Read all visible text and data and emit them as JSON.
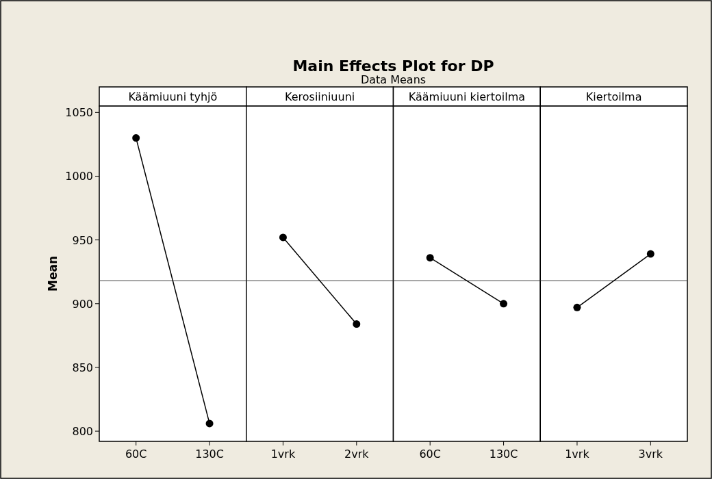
{
  "chart_data": [
    {
      "type": "other",
      "title": "Main Effects Plot for DP",
      "subtitle": "Data Means"
    },
    {
      "type": "line",
      "xlabel": "Käämiuuni tyhjö",
      "ylabel": "Mean",
      "categories": [
        "60C",
        "130C"
      ],
      "values": [
        1030,
        806
      ],
      "color": "#000000",
      "marker": "circle",
      "ylim": [
        792,
        1055
      ],
      "yticks": [
        800,
        850,
        900,
        950,
        1000,
        1050
      ],
      "grid": false,
      "ref_lines": [
        {
          "axis": "y",
          "value": 918,
          "color": "#404040"
        }
      ]
    },
    {
      "type": "line",
      "xlabel": "Kerosiiniuuni",
      "categories": [
        "1vrk",
        "2vrk"
      ],
      "values": [
        952,
        884
      ],
      "color": "#000000",
      "marker": "circle",
      "ylim": [
        792,
        1055
      ],
      "grid": false,
      "tick_labels": "x",
      "ref_lines": [
        {
          "axis": "y",
          "value": 918,
          "color": "#404040"
        }
      ]
    },
    {
      "type": "line",
      "xlabel": "Käämiuuni kiertoilma",
      "categories": [
        "60C",
        "130C"
      ],
      "values": [
        936,
        900
      ],
      "color": "#000000",
      "marker": "circle",
      "ylim": [
        792,
        1055
      ],
      "grid": false,
      "tick_labels": "x",
      "ref_lines": [
        {
          "axis": "y",
          "value": 918,
          "color": "#404040"
        }
      ]
    },
    {
      "type": "line",
      "xlabel": "Kiertoilma",
      "categories": [
        "1vrk",
        "3vrk"
      ],
      "values": [
        897,
        939
      ],
      "color": "#000000",
      "marker": "circle",
      "ylim": [
        792,
        1055
      ],
      "grid": false,
      "tick_labels": "x",
      "ref_lines": [
        {
          "axis": "y",
          "value": 918,
          "color": "#404040"
        }
      ]
    }
  ]
}
